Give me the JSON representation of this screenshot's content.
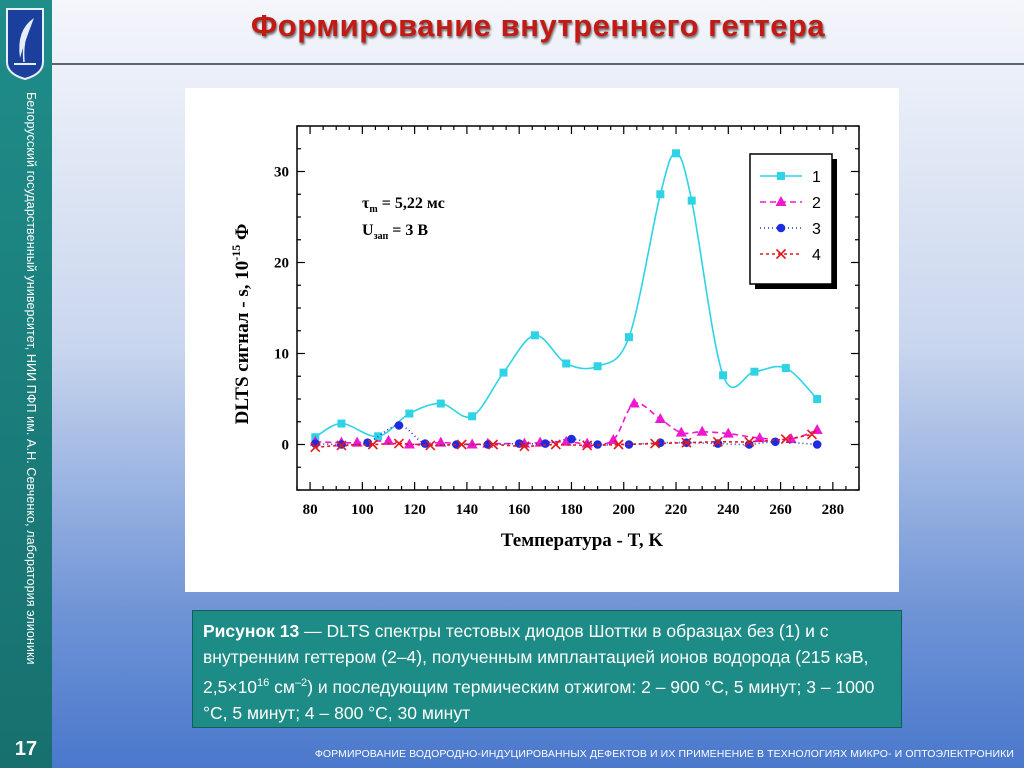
{
  "slide": {
    "title": "Формирование внутреннего геттера",
    "sidebar_text": "Белорусский государственный университет, НИИ ПФП им. А.Н. Севченко, лаборатория элионики",
    "slide_number": "17",
    "footer": "ФОРМИРОВАНИЕ ВОДОРОДНО-ИНДУЦИРОВАННЫХ ДЕФЕКТОВ И ИХ ПРИМЕНЕНИЕ В ТЕХНОЛОГИЯХ МИКРО- И ОПТОЭЛЕКТРОНИКИ"
  },
  "caption": {
    "label": "Рисунок 13",
    "dash": " — ",
    "text1": "DLTS спектры тестовых диодов Шоттки в образцах без (1) и с внутренним геттером (2–4), полученным имплантацией ионов водорода (215 кэВ, 2,5",
    "times": "×",
    "ten": "10",
    "exp1": "16",
    "unit": " см",
    "exp2": "–2",
    "text2": ") и последующим термическим отжигом: 2 – 900 °С, 5 минут; 3 – 1000 °С, 5 минут; 4 – 800 °С, 30 минут"
  },
  "chart_data": {
    "type": "scatter",
    "xlabel": "Температура - T, K",
    "ylabel_main": "DLTS сигнал - s, 10",
    "ylabel_exp": "-15",
    "ylabel_unit": " Ф",
    "xlim": [
      75,
      290
    ],
    "ylim": [
      -5,
      35
    ],
    "xticks": [
      80,
      100,
      120,
      140,
      160,
      180,
      200,
      220,
      240,
      260,
      280
    ],
    "yticks": [
      0,
      10,
      20,
      30
    ],
    "annotation_tau": "τ",
    "annotation_tau_sub": "m",
    "annotation_tau_val": " = 5,22 мс",
    "annotation_u": "U",
    "annotation_u_sub": "зап",
    "annotation_u_val": " = 3 В",
    "legend_position": "top-right",
    "series": [
      {
        "name": "1",
        "color": "#2fd3e6",
        "marker": "square",
        "dash": "",
        "x": [
          82,
          92,
          106,
          118,
          130,
          142,
          154,
          166,
          178,
          190,
          202,
          214,
          220,
          226,
          238,
          250,
          262,
          274
        ],
        "y": [
          0.8,
          2.3,
          0.9,
          3.4,
          4.5,
          3.1,
          7.9,
          12.0,
          8.9,
          8.6,
          11.8,
          27.5,
          32.0,
          26.8,
          7.6,
          8.0,
          8.4,
          5.0
        ]
      },
      {
        "name": "2",
        "color": "#ee18d0",
        "marker": "triangle",
        "dash": "6,4",
        "x": [
          82,
          92,
          98,
          110,
          118,
          130,
          142,
          148,
          162,
          168,
          178,
          186,
          196,
          204,
          214,
          222,
          230,
          240,
          252,
          264,
          274
        ],
        "y": [
          0.3,
          0.2,
          0.2,
          0.4,
          0.0,
          0.2,
          0.0,
          0.1,
          0.1,
          0.2,
          0.3,
          0.1,
          0.5,
          4.5,
          2.8,
          1.3,
          1.4,
          1.2,
          0.7,
          0.6,
          1.6
        ]
      },
      {
        "name": "3",
        "color": "#1e2be0",
        "marker": "circle",
        "dash": "1,3",
        "x": [
          82,
          92,
          102,
          114,
          124,
          136,
          148,
          160,
          170,
          180,
          190,
          202,
          214,
          224,
          236,
          248,
          258,
          274
        ],
        "y": [
          0.1,
          0.0,
          0.2,
          2.1,
          0.1,
          0.0,
          0.0,
          0.1,
          0.1,
          0.6,
          0.0,
          0.0,
          0.2,
          0.2,
          0.1,
          0.0,
          0.3,
          0.0
        ]
      },
      {
        "name": "4",
        "color": "#e21a1a",
        "marker": "cross",
        "dash": "3,3",
        "x": [
          82,
          92,
          104,
          114,
          126,
          138,
          150,
          162,
          174,
          186,
          198,
          212,
          224,
          236,
          248,
          262,
          272
        ],
        "y": [
          -0.3,
          -0.1,
          0.0,
          0.1,
          -0.1,
          0.0,
          0.0,
          -0.2,
          0.0,
          -0.1,
          0.0,
          0.1,
          0.2,
          0.3,
          0.3,
          0.6,
          1.1
        ]
      }
    ]
  }
}
